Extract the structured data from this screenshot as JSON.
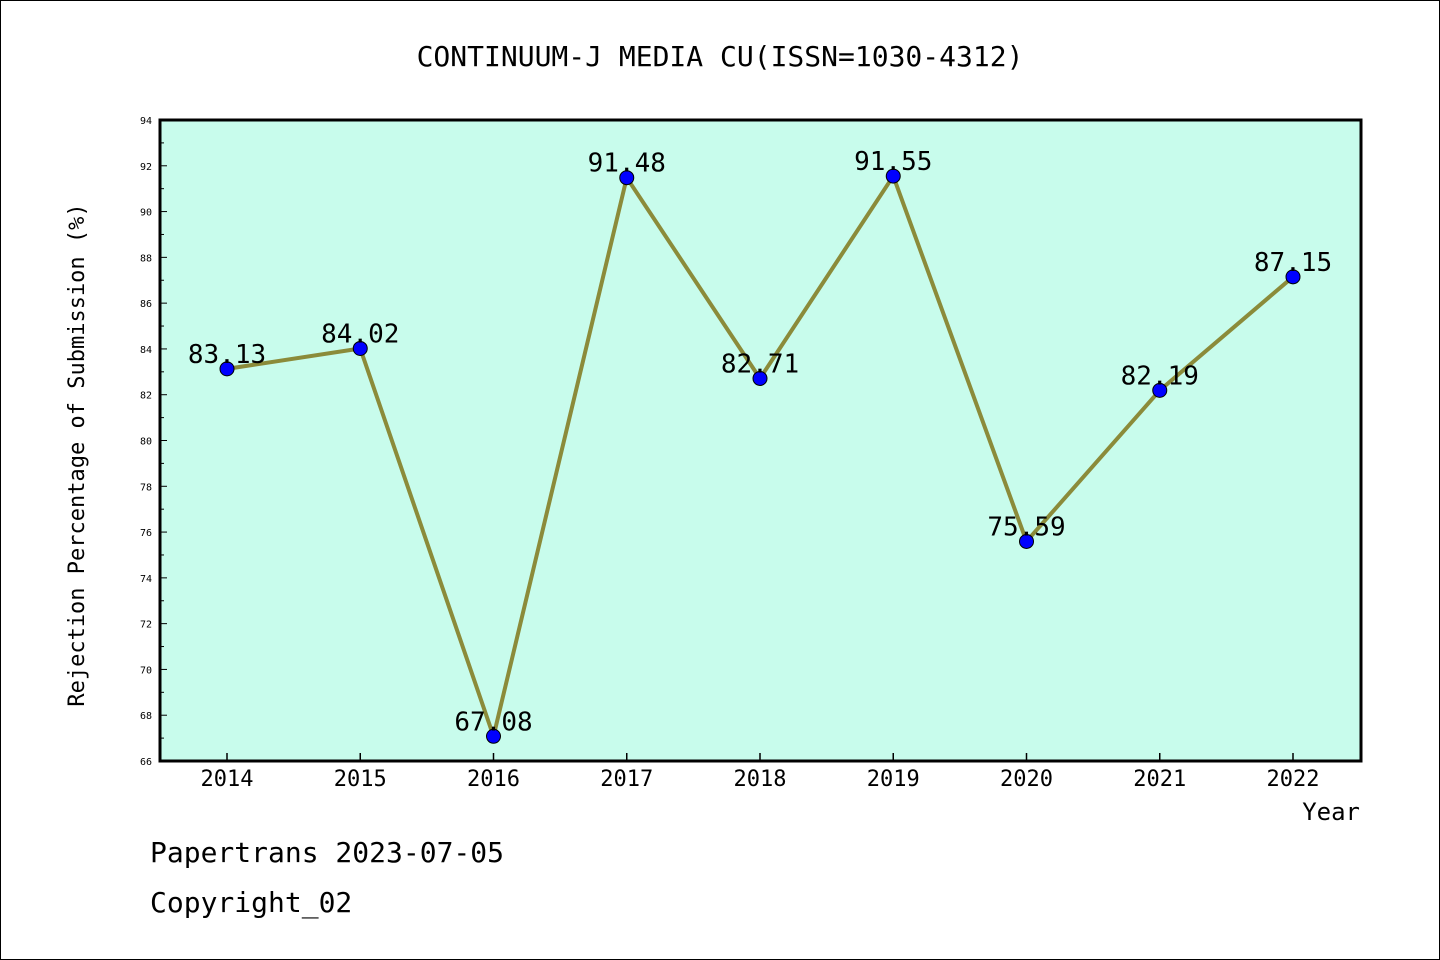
{
  "chart_data": {
    "type": "line",
    "title": "CONTINUUM-J MEDIA CU(ISSN=1030-4312)",
    "xlabel": "Year",
    "ylabel": "Rejection Percentage of Submission (%)",
    "categories": [
      "2014",
      "2015",
      "2016",
      "2017",
      "2018",
      "2019",
      "2020",
      "2021",
      "2022"
    ],
    "values": [
      83.13,
      84.02,
      67.08,
      91.48,
      82.71,
      91.55,
      75.59,
      82.19,
      87.15
    ],
    "data_labels": [
      "83.13",
      "84.02",
      "67.08",
      "91.48",
      "82.71",
      "91.55",
      "75.59",
      "82.19",
      "87.15"
    ],
    "ylim": [
      66,
      94
    ],
    "yticks": [
      "66",
      "68",
      "70",
      "72",
      "74",
      "76",
      "78",
      "80",
      "82",
      "84",
      "86",
      "88",
      "90",
      "92",
      "94"
    ],
    "grid": false,
    "legend": "none",
    "colors": {
      "plot_background": "#c8fcec",
      "line": "#8b8b3a",
      "marker": "#0000ff",
      "axis": "#000000"
    }
  },
  "footer": {
    "credit": "Papertrans 2023-07-05",
    "copyright": "Copyright_02"
  }
}
